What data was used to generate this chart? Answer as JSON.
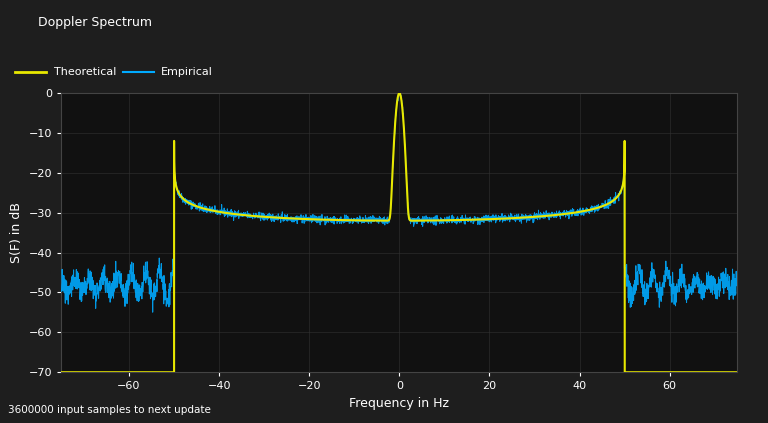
{
  "title": "Doppler Spectrum",
  "xlabel": "Frequency in Hz",
  "ylabel": "S(F) in dB",
  "footer": "3600000 input samples to next update",
  "xlim": [
    -75,
    75
  ],
  "ylim": [
    -70,
    0
  ],
  "xticks": [
    -60,
    -40,
    -20,
    0,
    20,
    40,
    60
  ],
  "yticks": [
    0,
    -10,
    -20,
    -30,
    -40,
    -50,
    -60,
    -70
  ],
  "bg_color": "#1a1a1a",
  "plot_bg_color": "#111111",
  "grid_color": "#333333",
  "theoretical_color": "#e8e800",
  "empirical_color": "#00aaff",
  "legend_theoretical": "Theoretical",
  "legend_empirical": "Empirical",
  "fd": 50,
  "title_bar_color": "#2a2a2a",
  "axis_color": "#cccccc"
}
